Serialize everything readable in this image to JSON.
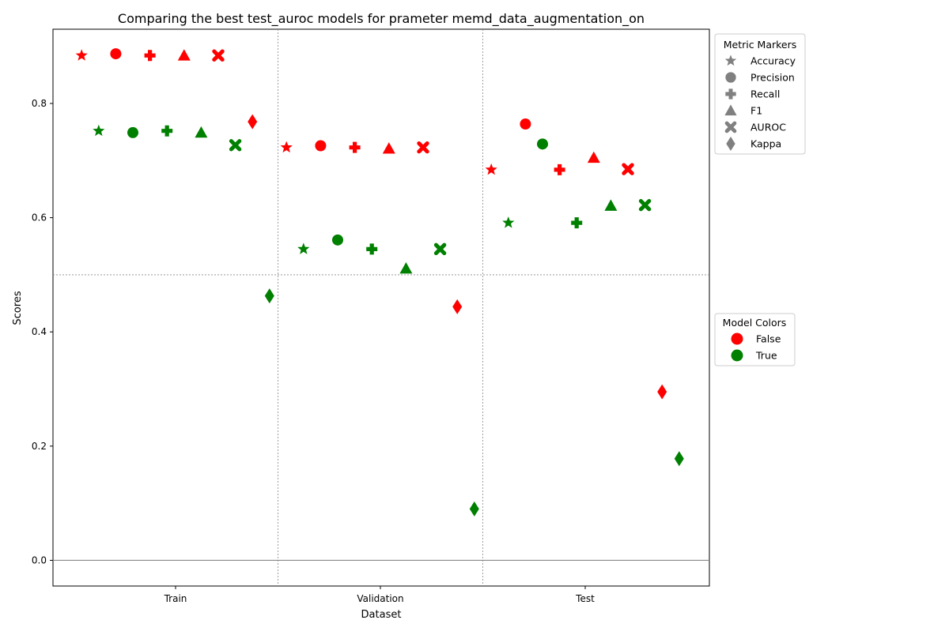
{
  "chart_data": {
    "type": "scatter",
    "title": "Comparing the best test_auroc models for prameter memd_data_augmentation_on",
    "xlabel": "Dataset",
    "ylabel": "Scores",
    "categories": [
      "Train",
      "Validation",
      "Test"
    ],
    "ylim": [
      -0.045,
      0.93
    ],
    "yticks": [
      "0.0",
      "0.2",
      "0.4",
      "0.6",
      "0.8"
    ],
    "ytick_values": [
      0.0,
      0.2,
      0.4,
      0.6,
      0.8
    ],
    "grid": "dotted separators at y=0.5 and between datasets",
    "metrics": [
      "Accuracy",
      "Precision",
      "Recall",
      "F1",
      "AUROC",
      "Kappa"
    ],
    "series": [
      {
        "name": "False",
        "color": "#ff0000",
        "values": {
          "Train": [
            0.884,
            0.887,
            0.884,
            0.884,
            0.884,
            0.768
          ],
          "Validation": [
            0.723,
            0.726,
            0.723,
            0.721,
            0.723,
            0.444
          ],
          "Test": [
            0.684,
            0.764,
            0.684,
            0.705,
            0.685,
            0.295
          ]
        }
      },
      {
        "name": "True",
        "color": "#008000",
        "values": {
          "Train": [
            0.752,
            0.749,
            0.752,
            0.749,
            0.727,
            0.463
          ],
          "Validation": [
            0.545,
            0.561,
            0.545,
            0.511,
            0.545,
            0.09
          ],
          "Test": [
            0.591,
            0.729,
            0.591,
            0.621,
            0.622,
            0.178
          ]
        }
      }
    ],
    "legend_metrics": {
      "title": "Metric Markers",
      "placement": "outside top-right",
      "entries": [
        {
          "label": "Accuracy",
          "marker": "star"
        },
        {
          "label": "Precision",
          "marker": "circle"
        },
        {
          "label": "Recall",
          "marker": "plus"
        },
        {
          "label": "F1",
          "marker": "triangle"
        },
        {
          "label": "AUROC",
          "marker": "x"
        },
        {
          "label": "Kappa",
          "marker": "diamond"
        }
      ]
    },
    "legend_models": {
      "title": "Model Colors",
      "placement": "outside middle-right",
      "entries": [
        {
          "label": "False",
          "color": "#ff0000"
        },
        {
          "label": "True",
          "color": "#008000"
        }
      ]
    }
  }
}
